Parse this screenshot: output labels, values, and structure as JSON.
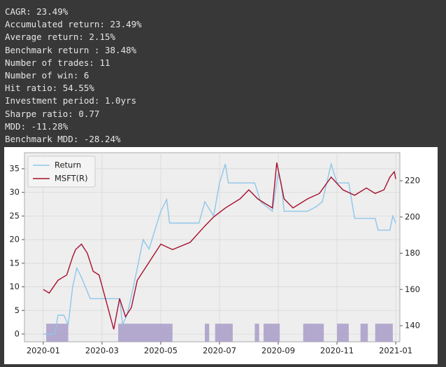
{
  "stats": [
    "CAGR: 23.49%",
    "Accumulated return: 23.49%",
    "Average return: 2.15%",
    "Benchmark return : 38.48%",
    "Number of trades: 11",
    "Number of win: 6",
    "Hit ratio: 54.55%",
    "Investment period: 1.0yrs",
    "Sharpe ratio: 0.77",
    "MDD: -11.28%",
    "Benchmark MDD: -28.24%"
  ],
  "chart_data": {
    "type": "line",
    "xlim": [
      -0.64,
      12.14
    ],
    "xticks": [
      {
        "value": 0,
        "label": "2020-01"
      },
      {
        "value": 2,
        "label": "2020-03"
      },
      {
        "value": 4,
        "label": "2020-05"
      },
      {
        "value": 6,
        "label": "2020-07"
      },
      {
        "value": 8,
        "label": "2020-09"
      },
      {
        "value": 10,
        "label": "2020-11"
      },
      {
        "value": 12,
        "label": "2021-01"
      }
    ],
    "ylim": [
      -1.63,
      38.4
    ],
    "yticks": [
      0,
      5,
      10,
      15,
      20,
      25,
      30,
      35
    ],
    "y2lim": [
      131.1,
      235.5
    ],
    "y2ticks": [
      140,
      160,
      180,
      200,
      220
    ],
    "grid": true,
    "legend": "upper left",
    "series": [
      {
        "name": "Return",
        "color": "#8ec6ea",
        "x": [
          0,
          0.4,
          0.5,
          0.7,
          0.85,
          1.0,
          1.14,
          1.3,
          1.6,
          2.0,
          2.6,
          2.7,
          2.85,
          3.0,
          3.2,
          3.4,
          3.6,
          3.8,
          4.0,
          4.2,
          4.3,
          5.3,
          5.5,
          5.8,
          6.0,
          6.2,
          6.3,
          7.2,
          7.4,
          7.8,
          8.0,
          8.1,
          8.2,
          9.0,
          9.3,
          9.5,
          9.8,
          10.0,
          10.4,
          10.6,
          11.3,
          11.4,
          11.8,
          11.9,
          12.0
        ],
        "values": [
          0,
          0,
          4,
          4,
          2,
          10,
          14,
          12,
          7.5,
          7.5,
          7.5,
          2,
          4,
          8,
          14,
          20,
          18,
          22,
          26,
          28.5,
          23.5,
          23.5,
          28,
          25,
          32,
          36,
          32,
          32,
          28,
          26,
          34,
          32,
          26,
          26,
          27,
          28,
          36,
          32,
          32,
          24.5,
          24.5,
          22,
          22,
          25,
          23.5
        ]
      },
      {
        "name": "MSFT(R)",
        "color": "#a50f2f",
        "axis": "y2",
        "x": [
          0,
          0.2,
          0.5,
          0.8,
          1.0,
          1.1,
          1.3,
          1.5,
          1.7,
          1.9,
          2.2,
          2.4,
          2.6,
          2.8,
          3.0,
          3.2,
          3.6,
          4.0,
          4.4,
          5.0,
          5.5,
          5.8,
          6.2,
          6.7,
          7.0,
          7.3,
          7.5,
          7.8,
          7.95,
          8.05,
          8.2,
          8.5,
          9.0,
          9.4,
          9.8,
          10.2,
          10.6,
          11.0,
          11.3,
          11.6,
          11.8,
          11.95,
          12.0
        ],
        "values": [
          160,
          158,
          165,
          168,
          178,
          182,
          185,
          180,
          170,
          168,
          150,
          138,
          155,
          145,
          150,
          165,
          175,
          185,
          182,
          186,
          195,
          200,
          205,
          210,
          215,
          210,
          208,
          205,
          230,
          222,
          210,
          205,
          210,
          213,
          222,
          215,
          212,
          216,
          213,
          215,
          222,
          225,
          221
        ]
      }
    ],
    "shade": {
      "color": "#a89cc8",
      "top": 2.2,
      "periods": [
        [
          0.1,
          0.85
        ],
        [
          2.55,
          4.4
        ],
        [
          5.5,
          5.65
        ],
        [
          5.85,
          6.45
        ],
        [
          7.2,
          7.35
        ],
        [
          7.5,
          8.05
        ],
        [
          8.85,
          9.55
        ],
        [
          10.0,
          10.4
        ],
        [
          10.8,
          11.05
        ],
        [
          11.3,
          11.9
        ]
      ]
    }
  }
}
